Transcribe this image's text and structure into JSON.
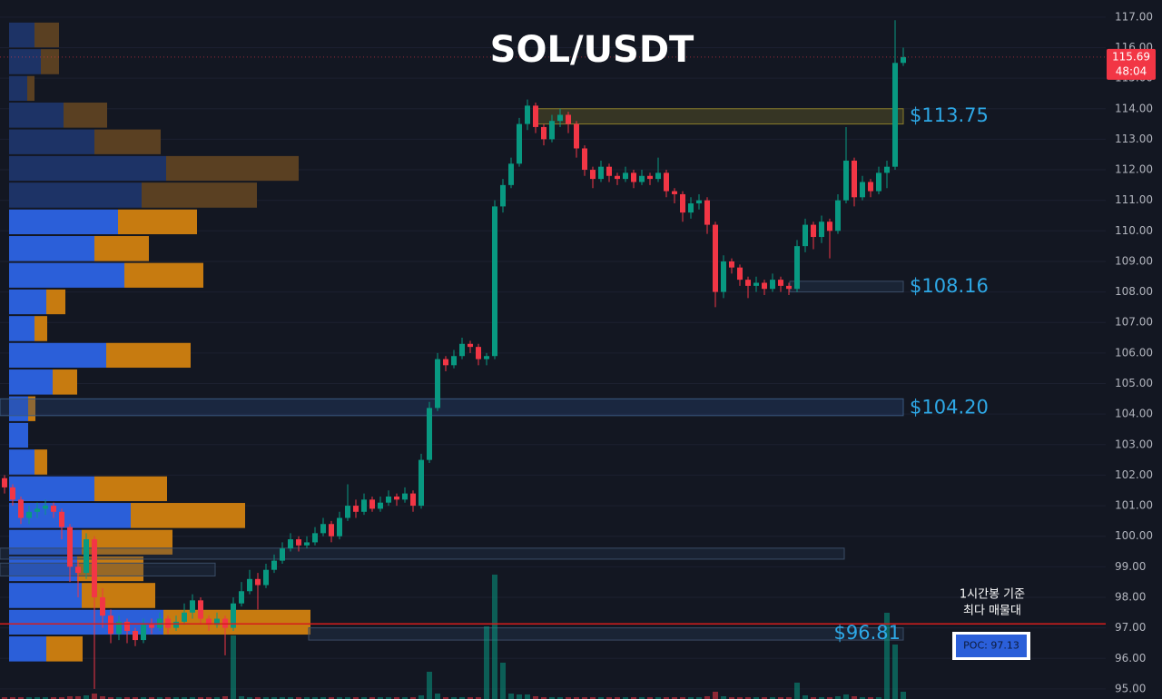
{
  "chart_data": {
    "type": "candlestick",
    "title": "SOL/USDT",
    "ylim": [
      94.67,
      117.56
    ],
    "yticks": [
      {
        "value": 95,
        "label": "95.00"
      },
      {
        "value": 96,
        "label": "96.00"
      },
      {
        "value": 97,
        "label": "97.00"
      },
      {
        "value": 98,
        "label": "98.00"
      },
      {
        "value": 99,
        "label": "99.00"
      },
      {
        "value": 100,
        "label": "100.00"
      },
      {
        "value": 101,
        "label": "101.00"
      },
      {
        "value": 102,
        "label": "102.00"
      },
      {
        "value": 103,
        "label": "103.00"
      },
      {
        "value": 104,
        "label": "104.00"
      },
      {
        "value": 105,
        "label": "105.00"
      },
      {
        "value": 106,
        "label": "106.00"
      },
      {
        "value": 107,
        "label": "107.00"
      },
      {
        "value": 108,
        "label": "108.00"
      },
      {
        "value": 109,
        "label": "109.00"
      },
      {
        "value": 110,
        "label": "110.00"
      },
      {
        "value": 111,
        "label": "111.00"
      },
      {
        "value": 112,
        "label": "112.00"
      },
      {
        "value": 113,
        "label": "113.00"
      },
      {
        "value": 114,
        "label": "114.00"
      },
      {
        "value": 115,
        "label": "115.00"
      },
      {
        "value": 116,
        "label": "116.00"
      },
      {
        "value": 117,
        "label": "117.00"
      }
    ],
    "grid": true,
    "up_color": "#089981",
    "down_color": "#f23645",
    "candles": [
      [
        101.9,
        102.0,
        101.4,
        101.6
      ],
      [
        101.6,
        101.7,
        101.0,
        101.2
      ],
      [
        101.2,
        101.3,
        100.4,
        100.6
      ],
      [
        100.6,
        101.0,
        100.4,
        100.8
      ],
      [
        100.8,
        101.1,
        100.6,
        100.9
      ],
      [
        100.9,
        101.2,
        100.7,
        101.0
      ],
      [
        101.0,
        101.1,
        100.6,
        100.8
      ],
      [
        100.8,
        100.9,
        99.9,
        100.3
      ],
      [
        100.3,
        100.4,
        98.5,
        99.0
      ],
      [
        99.0,
        99.2,
        98.0,
        98.8
      ],
      [
        98.8,
        100.1,
        98.6,
        99.9
      ],
      [
        99.9,
        100.0,
        95.0,
        98.0
      ],
      [
        98.0,
        98.3,
        97.0,
        97.4
      ],
      [
        97.4,
        97.6,
        96.5,
        96.8
      ],
      [
        96.8,
        97.4,
        96.6,
        97.2
      ],
      [
        97.2,
        97.3,
        96.5,
        96.9
      ],
      [
        96.9,
        97.0,
        96.4,
        96.6
      ],
      [
        96.6,
        97.3,
        96.5,
        97.1
      ],
      [
        97.1,
        97.3,
        96.8,
        97.0
      ],
      [
        97.0,
        97.5,
        96.9,
        97.3
      ],
      [
        97.3,
        97.4,
        96.8,
        97.0
      ],
      [
        97.0,
        97.4,
        96.9,
        97.2
      ],
      [
        97.2,
        97.8,
        97.1,
        97.5
      ],
      [
        97.5,
        98.1,
        97.3,
        97.9
      ],
      [
        97.9,
        98.0,
        97.1,
        97.3
      ],
      [
        97.3,
        97.4,
        96.9,
        97.1
      ],
      [
        97.1,
        97.5,
        97.0,
        97.3
      ],
      [
        97.3,
        97.4,
        96.1,
        97.0
      ],
      [
        97.0,
        98.0,
        96.9,
        97.8
      ],
      [
        97.8,
        98.5,
        97.7,
        98.2
      ],
      [
        98.2,
        98.9,
        98.1,
        98.6
      ],
      [
        98.6,
        98.8,
        97.6,
        98.4
      ],
      [
        98.4,
        99.1,
        98.3,
        98.9
      ],
      [
        98.9,
        99.4,
        98.8,
        99.2
      ],
      [
        99.2,
        99.8,
        99.1,
        99.6
      ],
      [
        99.6,
        100.1,
        99.5,
        99.9
      ],
      [
        99.9,
        100.0,
        99.5,
        99.7
      ],
      [
        99.7,
        100.0,
        99.6,
        99.8
      ],
      [
        99.8,
        100.3,
        99.7,
        100.1
      ],
      [
        100.1,
        100.6,
        100.0,
        100.4
      ],
      [
        100.4,
        100.5,
        99.8,
        100.0
      ],
      [
        100.0,
        100.8,
        99.9,
        100.6
      ],
      [
        100.6,
        101.7,
        100.5,
        101.0
      ],
      [
        101.0,
        101.2,
        100.6,
        100.8
      ],
      [
        100.8,
        101.4,
        100.7,
        101.2
      ],
      [
        101.2,
        101.3,
        100.8,
        100.9
      ],
      [
        100.9,
        101.3,
        100.8,
        101.1
      ],
      [
        101.1,
        101.5,
        101.0,
        101.3
      ],
      [
        101.3,
        101.4,
        101.0,
        101.2
      ],
      [
        101.2,
        101.6,
        101.1,
        101.4
      ],
      [
        101.4,
        101.5,
        100.8,
        101.0
      ],
      [
        101.0,
        102.7,
        100.9,
        102.5
      ],
      [
        102.5,
        104.4,
        102.4,
        104.2
      ],
      [
        104.2,
        106.0,
        104.1,
        105.8
      ],
      [
        105.8,
        105.9,
        105.4,
        105.6
      ],
      [
        105.6,
        106.1,
        105.5,
        105.9
      ],
      [
        105.9,
        106.5,
        105.8,
        106.3
      ],
      [
        106.3,
        106.4,
        106.0,
        106.2
      ],
      [
        106.2,
        106.3,
        105.6,
        105.8
      ],
      [
        105.8,
        106.0,
        105.6,
        105.9
      ],
      [
        105.9,
        111.0,
        105.8,
        110.8
      ],
      [
        110.8,
        111.7,
        110.6,
        111.5
      ],
      [
        111.5,
        112.4,
        111.4,
        112.2
      ],
      [
        112.2,
        113.7,
        112.1,
        113.5
      ],
      [
        113.5,
        114.3,
        113.3,
        114.1
      ],
      [
        114.1,
        114.2,
        113.2,
        113.4
      ],
      [
        113.4,
        113.5,
        112.8,
        113.0
      ],
      [
        113.0,
        113.8,
        112.9,
        113.6
      ],
      [
        113.6,
        114.0,
        113.4,
        113.8
      ],
      [
        113.8,
        113.9,
        113.2,
        113.5
      ],
      [
        113.5,
        113.6,
        112.4,
        112.7
      ],
      [
        112.7,
        112.8,
        111.8,
        112.0
      ],
      [
        112.0,
        112.1,
        111.4,
        111.7
      ],
      [
        111.7,
        112.3,
        111.6,
        112.1
      ],
      [
        112.1,
        112.2,
        111.6,
        111.8
      ],
      [
        111.8,
        111.9,
        111.5,
        111.7
      ],
      [
        111.7,
        112.1,
        111.6,
        111.9
      ],
      [
        111.9,
        112.0,
        111.4,
        111.6
      ],
      [
        111.6,
        112.0,
        111.5,
        111.8
      ],
      [
        111.8,
        111.9,
        111.5,
        111.7
      ],
      [
        111.7,
        112.4,
        111.6,
        111.9
      ],
      [
        111.9,
        112.0,
        111.1,
        111.3
      ],
      [
        111.3,
        111.4,
        110.9,
        111.2
      ],
      [
        111.2,
        111.3,
        110.3,
        110.6
      ],
      [
        110.6,
        111.1,
        110.4,
        110.9
      ],
      [
        110.9,
        111.2,
        110.7,
        111.0
      ],
      [
        111.0,
        111.1,
        109.9,
        110.2
      ],
      [
        110.2,
        110.3,
        107.5,
        108.0
      ],
      [
        108.0,
        109.2,
        107.8,
        109.0
      ],
      [
        109.0,
        109.1,
        108.6,
        108.8
      ],
      [
        108.8,
        108.9,
        108.2,
        108.4
      ],
      [
        108.4,
        108.5,
        107.8,
        108.2
      ],
      [
        108.2,
        108.5,
        108.0,
        108.3
      ],
      [
        108.3,
        108.4,
        107.9,
        108.1
      ],
      [
        108.1,
        108.6,
        108.0,
        108.4
      ],
      [
        108.4,
        108.5,
        108.0,
        108.2
      ],
      [
        108.2,
        108.3,
        107.9,
        108.1
      ],
      [
        108.1,
        109.7,
        108.0,
        109.5
      ],
      [
        109.5,
        110.4,
        109.3,
        110.2
      ],
      [
        110.2,
        110.3,
        109.4,
        109.8
      ],
      [
        109.8,
        110.5,
        109.6,
        110.3
      ],
      [
        110.3,
        110.4,
        109.1,
        110.0
      ],
      [
        110.0,
        111.2,
        109.9,
        111.0
      ],
      [
        111.0,
        113.4,
        110.9,
        112.3
      ],
      [
        112.3,
        112.4,
        110.8,
        111.1
      ],
      [
        111.1,
        111.8,
        111.0,
        111.6
      ],
      [
        111.6,
        111.7,
        111.1,
        111.3
      ],
      [
        111.3,
        112.1,
        111.2,
        111.9
      ],
      [
        111.9,
        112.3,
        111.4,
        112.1
      ],
      [
        112.1,
        116.9,
        112.0,
        115.5
      ],
      [
        115.5,
        116.0,
        115.4,
        115.69
      ]
    ],
    "volume": [
      2,
      2,
      2,
      2,
      2,
      2,
      2,
      2,
      3,
      3,
      4,
      6,
      3,
      2,
      2,
      2,
      2,
      2,
      2,
      2,
      2,
      2,
      2,
      2,
      2,
      2,
      2,
      3,
      70,
      3,
      2,
      2,
      2,
      2,
      2,
      2,
      2,
      2,
      2,
      2,
      2,
      2,
      2,
      2,
      2,
      2,
      2,
      2,
      2,
      2,
      2,
      4,
      30,
      6,
      2,
      2,
      2,
      2,
      2,
      80,
      137,
      40,
      6,
      5,
      5,
      3,
      2,
      2,
      2,
      2,
      2,
      2,
      2,
      2,
      2,
      2,
      2,
      2,
      2,
      2,
      2,
      2,
      2,
      2,
      2,
      2,
      3,
      8,
      3,
      2,
      2,
      2,
      2,
      2,
      2,
      2,
      2,
      18,
      4,
      2,
      2,
      2,
      3,
      5,
      3,
      2,
      2,
      2,
      95,
      60,
      8
    ],
    "last_price": 115.69,
    "countdown": "48:04",
    "volume_profile": {
      "bins": [
        116.85,
        115.98,
        115.1,
        114.23,
        113.35,
        112.48,
        111.61,
        110.73,
        109.86,
        108.98,
        108.11,
        107.24,
        106.36,
        105.49,
        104.61,
        103.74,
        102.87,
        101.99,
        101.12,
        100.24,
        99.37,
        98.5,
        97.62,
        96.75,
        95.87
      ],
      "buy": [
        28,
        35,
        20,
        60,
        94,
        173,
        146,
        120,
        94,
        127,
        41,
        28,
        107,
        48,
        21,
        21,
        28,
        94,
        134,
        80,
        75,
        80,
        170,
        41
      ],
      "sell": [
        27,
        20,
        8,
        48,
        73,
        146,
        127,
        87,
        60,
        87,
        21,
        14,
        93,
        27,
        8,
        0,
        14,
        80,
        126,
        100,
        73,
        81,
        162,
        40
      ],
      "value_area": [
        95.87,
        110.73
      ],
      "buy_color": "#2b5fd9",
      "sell_color": "#c77b10",
      "dim_buy_color": "#1d3366",
      "dim_sell_color": "#5a4022"
    },
    "levels": [
      {
        "value": 113.75,
        "label": "$113.75",
        "zone": [
          113.5,
          114.0
        ],
        "label_position": "outside"
      },
      {
        "value": 108.16,
        "label": "$108.16",
        "zone": [
          108.0,
          108.35
        ],
        "label_position": "outside"
      },
      {
        "value": 104.2,
        "label": "$104.20",
        "zone": [
          103.95,
          104.5
        ],
        "label_position": "outside"
      },
      {
        "value": 96.81,
        "label": "$96.81",
        "zone": [
          96.6,
          97.0
        ],
        "label_position": "inside"
      }
    ],
    "zones": [
      [
        99.25,
        99.61
      ],
      [
        98.7,
        99.12
      ]
    ],
    "poc": {
      "value": 97.13,
      "label": "POC: 97.13"
    },
    "annotation": [
      "1시간봉 기준",
      "최다 매물대"
    ]
  }
}
